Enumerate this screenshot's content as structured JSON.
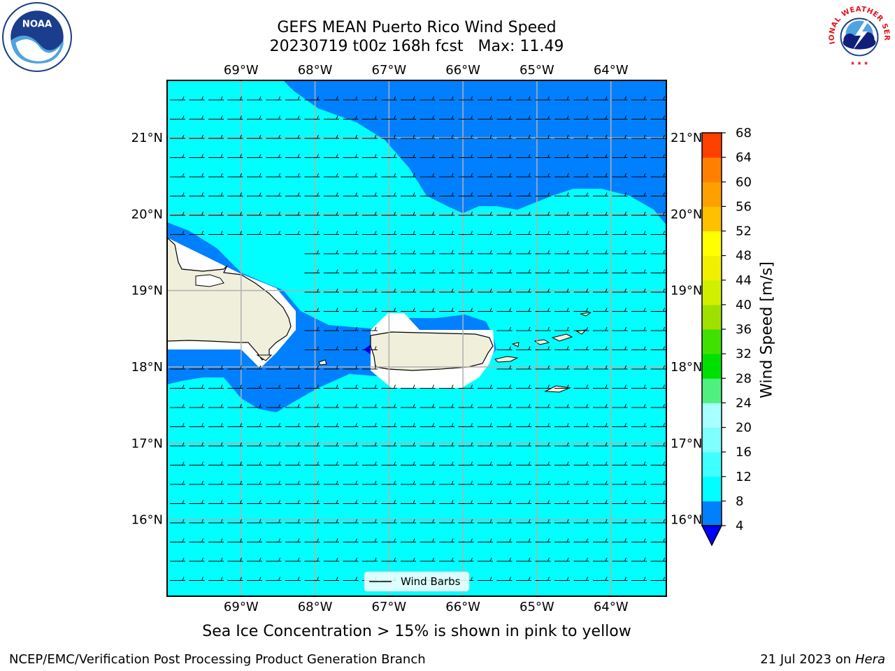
{
  "header": {
    "title_line1": "GEFS MEAN Puerto Rico Wind Speed",
    "title_line2": "20230719 t00z 168h fcst   Max: 11.49"
  },
  "logos": {
    "left": {
      "icon": "noaa-logo-icon",
      "text": "NOAA"
    },
    "right": {
      "icon": "nws-logo-icon",
      "text": "NATIONAL WEATHER SERVICE"
    }
  },
  "map": {
    "lon_range": [
      -70.0,
      -63.25
    ],
    "lat_range": [
      15.0,
      21.75
    ],
    "lon_ticks": [
      {
        "value": -69,
        "label": "69°W"
      },
      {
        "value": -68,
        "label": "68°W"
      },
      {
        "value": -67,
        "label": "67°W"
      },
      {
        "value": -66,
        "label": "66°W"
      },
      {
        "value": -65,
        "label": "65°W"
      },
      {
        "value": -64,
        "label": "64°W"
      }
    ],
    "lat_ticks": [
      {
        "value": 21,
        "label": "21°N"
      },
      {
        "value": 20,
        "label": "20°N"
      },
      {
        "value": 19,
        "label": "19°N"
      },
      {
        "value": 18,
        "label": "18°N"
      },
      {
        "value": 17,
        "label": "17°N"
      },
      {
        "value": 16,
        "label": "16°N"
      }
    ],
    "legend_label": "Wind Barbs",
    "colors": {
      "band_4_8": "#0080ff",
      "band_8_12": "#00ffff",
      "below_4": "#0000ff",
      "land": "#efefdb",
      "grid": "#b0b0b0"
    }
  },
  "colorbar": {
    "label": "Wind Speed [m/s]",
    "ticks": [
      "4",
      "8",
      "12",
      "16",
      "20",
      "24",
      "28",
      "32",
      "36",
      "40",
      "44",
      "48",
      "52",
      "56",
      "60",
      "64",
      "68"
    ],
    "colors": [
      "#0080ff",
      "#00ffff",
      "#40ffff",
      "#80ffff",
      "#a8ffff",
      "#50f080",
      "#00e000",
      "#40e000",
      "#a0e000",
      "#d0f000",
      "#f0f000",
      "#ffff00",
      "#ffc000",
      "#ffa000",
      "#ff8000",
      "#ff4000",
      "#ff0000"
    ],
    "under_color": "#0000ff"
  },
  "caption": "Sea Ice Concentration > 15% is shown in pink to yellow",
  "footer": {
    "left": "NCEP/EMC/Verification Post Processing Product Generation Branch",
    "date": "21 Jul 2023 on ",
    "host": "Hera"
  }
}
